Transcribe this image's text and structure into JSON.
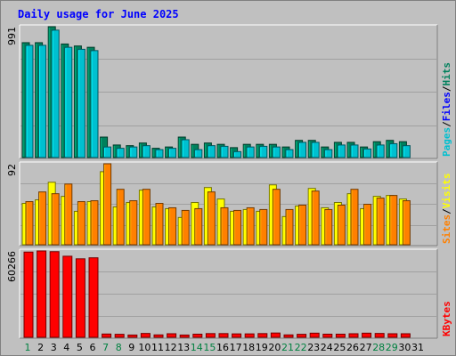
{
  "title": "Daily usage for June 2025",
  "colors": {
    "background": "#c0c0c0",
    "grid": "#a0a0a0",
    "title": "#0000ff",
    "hits": "#00805c",
    "files": "#0000ff",
    "pages": "#00c0d0",
    "visits": "#ffff00",
    "sites": "#ff8000",
    "kbytes": "#ff0000",
    "weekend_day": "#008040",
    "weekday": "#000000"
  },
  "chart_data": [
    {
      "type": "bar",
      "panel": "hits-files-pages",
      "legend": [
        "Pages",
        "/",
        "Files",
        "/",
        "Hits"
      ],
      "ymax_label": "991",
      "ylim": [
        0,
        991
      ],
      "grid": true,
      "categories": [
        "1",
        "2",
        "3",
        "4",
        "5",
        "6",
        "7",
        "8",
        "9",
        "10",
        "11",
        "12",
        "13",
        "14",
        "15",
        "16",
        "17",
        "18",
        "19",
        "20",
        "21",
        "22",
        "23",
        "24",
        "25",
        "26",
        "27",
        "28",
        "29",
        "30",
        "31"
      ],
      "series": [
        {
          "name": "Hits",
          "values": [
            870,
            870,
            991,
            860,
            845,
            835,
            155,
            95,
            90,
            110,
            70,
            80,
            155,
            100,
            110,
            100,
            75,
            100,
            100,
            100,
            80,
            130,
            130,
            80,
            115,
            115,
            80,
            120,
            130,
            120,
            0
          ]
        },
        {
          "name": "Pages",
          "values": [
            850,
            850,
            965,
            835,
            820,
            810,
            80,
            70,
            80,
            90,
            60,
            70,
            135,
            60,
            90,
            85,
            45,
            80,
            85,
            80,
            60,
            115,
            115,
            60,
            95,
            95,
            65,
            95,
            105,
            90,
            0
          ]
        }
      ]
    },
    {
      "type": "bar",
      "panel": "visits-sites",
      "legend": [
        "Sites",
        "/",
        "Visits"
      ],
      "ymax_label": "92",
      "ylim": [
        0,
        92
      ],
      "grid": true,
      "categories": [
        "1",
        "2",
        "3",
        "4",
        "5",
        "6",
        "7",
        "8",
        "9",
        "10",
        "11",
        "12",
        "13",
        "14",
        "15",
        "16",
        "17",
        "18",
        "19",
        "20",
        "21",
        "22",
        "23",
        "24",
        "25",
        "26",
        "27",
        "28",
        "29",
        "30",
        "31"
      ],
      "series": [
        {
          "name": "Visits",
          "values": [
            47,
            51,
            71,
            55,
            38,
            49,
            83,
            43,
            48,
            62,
            43,
            41,
            31,
            48,
            65,
            52,
            38,
            40,
            38,
            68,
            32,
            44,
            64,
            42,
            48,
            58,
            41,
            55,
            56,
            52,
            0
          ]
        },
        {
          "name": "Sites",
          "values": [
            49,
            60,
            58,
            69,
            49,
            50,
            92,
            63,
            50,
            63,
            47,
            42,
            39,
            41,
            60,
            42,
            39,
            42,
            40,
            63,
            40,
            45,
            61,
            40,
            45,
            63,
            46,
            53,
            56,
            50,
            0
          ]
        }
      ]
    },
    {
      "type": "bar",
      "panel": "kbytes",
      "legend": [
        "KBytes"
      ],
      "ymax_label": "60266",
      "ylim": [
        0,
        60266
      ],
      "grid": true,
      "categories": [
        "1",
        "2",
        "3",
        "4",
        "5",
        "6",
        "7",
        "8",
        "9",
        "10",
        "11",
        "12",
        "13",
        "14",
        "15",
        "16",
        "17",
        "18",
        "19",
        "20",
        "21",
        "22",
        "23",
        "24",
        "25",
        "26",
        "27",
        "28",
        "29",
        "30",
        "31"
      ],
      "series": [
        {
          "name": "KBytes",
          "values": [
            59500,
            60266,
            59800,
            56600,
            54800,
            55500,
            2300,
            2100,
            1600,
            2700,
            1700,
            2500,
            1600,
            2200,
            2600,
            2600,
            2400,
            2400,
            2600,
            3000,
            1700,
            2100,
            2900,
            2200,
            2200,
            2500,
            2900,
            2700,
            2500,
            2500,
            0
          ]
        }
      ]
    }
  ],
  "x_axis": {
    "days": [
      "1",
      "2",
      "3",
      "4",
      "5",
      "6",
      "7",
      "8",
      "9",
      "10",
      "11",
      "12",
      "13",
      "14",
      "15",
      "16",
      "17",
      "18",
      "19",
      "20",
      "21",
      "22",
      "23",
      "24",
      "25",
      "26",
      "27",
      "28",
      "29",
      "30",
      "31"
    ],
    "weekend_days": [
      "1",
      "7",
      "8",
      "14",
      "15",
      "21",
      "22",
      "28",
      "29"
    ]
  }
}
